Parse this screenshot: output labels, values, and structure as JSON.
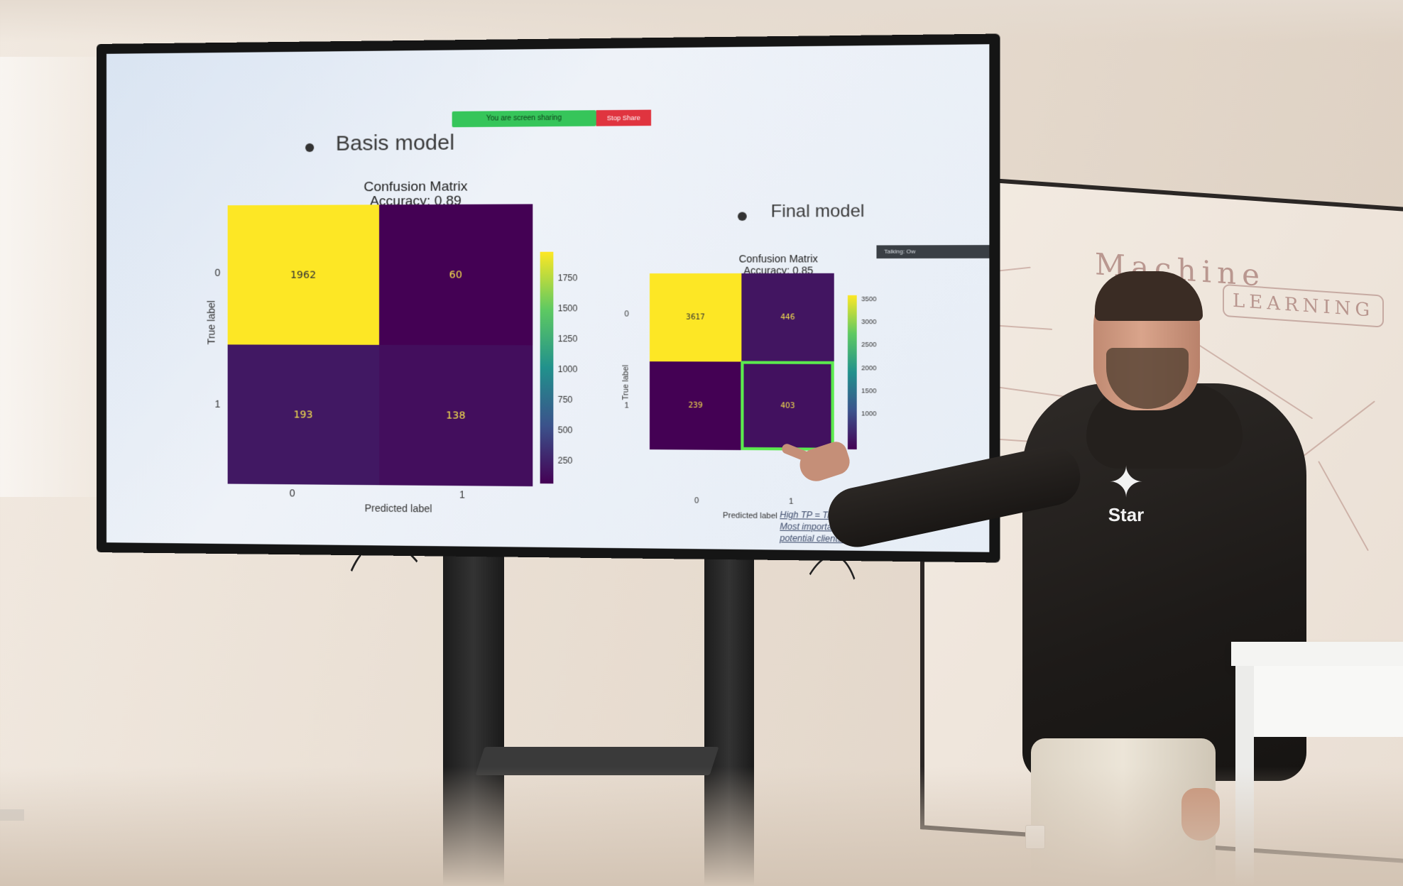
{
  "screen": {
    "share_banner": "You are screen sharing",
    "stop_share": "Stop Share",
    "talking": "Talking: Ow"
  },
  "slide": {
    "left_heading": "Basis model",
    "right_heading": "Final model",
    "annotation": [
      "High TP = Tru",
      "Most importantly to capture",
      "potential clients."
    ]
  },
  "charts": {
    "basis": {
      "title": "Confusion Matrix",
      "subtitle": "Accuracy: 0.89",
      "xlabel": "Predicted label",
      "ylabel": "True label",
      "x_ticks": [
        "0",
        "1"
      ],
      "y_ticks": [
        "0",
        "1"
      ],
      "colorbar_ticks": [
        "1750",
        "1500",
        "1250",
        "1000",
        "750",
        "500",
        "250"
      ]
    },
    "final": {
      "title": "Confusion Matrix",
      "subtitle": "Accuracy: 0.85",
      "xlabel": "Predicted label",
      "ylabel": "True label",
      "x_ticks": [
        "0",
        "1"
      ],
      "y_ticks": [
        "0",
        "1"
      ],
      "colorbar_ticks": [
        "3500",
        "3000",
        "2500",
        "2000",
        "1500",
        "1000"
      ]
    }
  },
  "chart_data": [
    {
      "type": "heatmap",
      "title": "Confusion Matrix",
      "subtitle": "Accuracy: 0.89",
      "xlabel": "Predicted label",
      "ylabel": "True label",
      "x_categories": [
        "0",
        "1"
      ],
      "y_categories": [
        "0",
        "1"
      ],
      "values": [
        [
          1962,
          60
        ],
        [
          193,
          138
        ]
      ],
      "colormap": "viridis",
      "colorbar_range": [
        60,
        1962
      ]
    },
    {
      "type": "heatmap",
      "title": "Confusion Matrix",
      "subtitle": "Accuracy: 0.85",
      "xlabel": "Predicted label",
      "ylabel": "True label",
      "x_categories": [
        "0",
        "1"
      ],
      "y_categories": [
        "0",
        "1"
      ],
      "values": [
        [
          3617,
          446
        ],
        [
          239,
          403
        ]
      ],
      "colormap": "viridis",
      "colorbar_range": [
        239,
        3617
      ],
      "highlighted_cell": [
        1,
        1
      ]
    }
  ],
  "background": {
    "whiteboard_text": [
      "LEARNING",
      "Machine"
    ],
    "hoodie_logo": "Star"
  }
}
